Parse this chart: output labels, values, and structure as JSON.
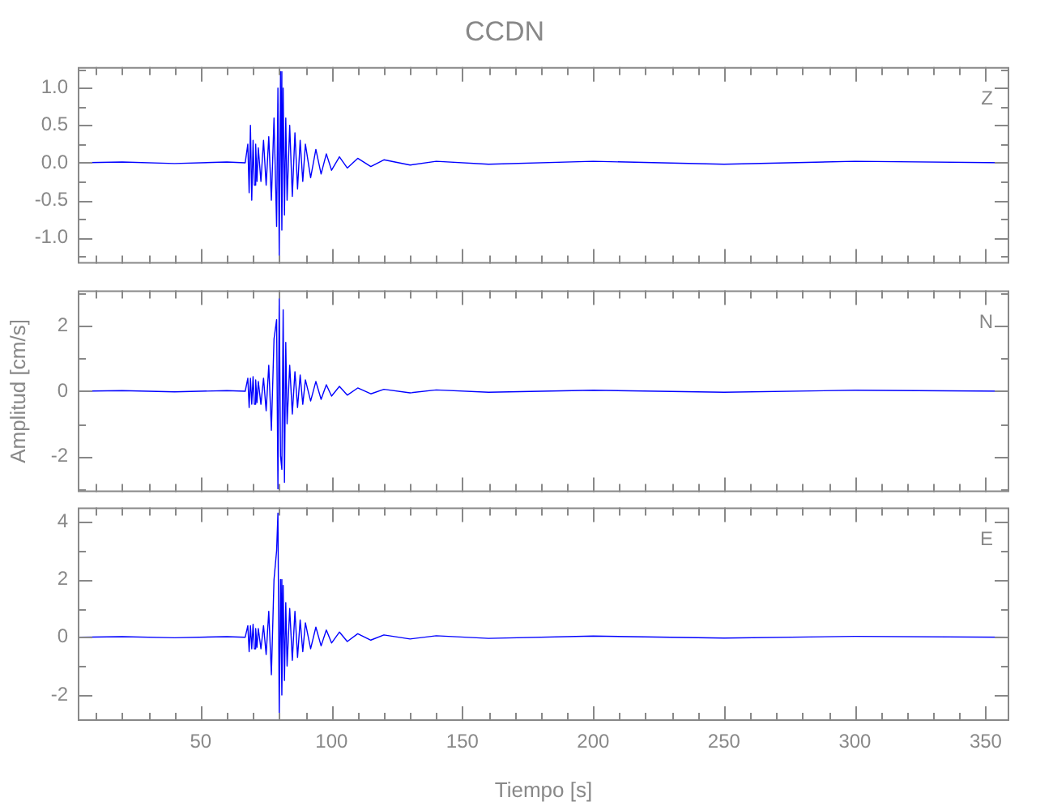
{
  "chart_data": [
    {
      "type": "line",
      "title": "CCDN",
      "annotations": [
        "Z"
      ],
      "tick_labels": "y",
      "x": [
        3,
        20,
        40,
        60,
        67,
        68,
        68.5,
        69,
        69.5,
        70,
        70.5,
        71,
        71.5,
        72,
        73,
        74,
        75,
        76,
        77,
        78,
        79,
        79.5,
        80,
        80.5,
        81,
        81.5,
        82,
        82.5,
        83,
        84,
        85,
        86,
        87,
        88,
        89,
        90,
        92,
        94,
        96,
        98,
        100,
        103,
        106,
        110,
        115,
        120,
        130,
        140,
        160,
        200,
        250,
        300,
        359
      ],
      "series": [
        {
          "color": "#0000ff",
          "values": [
            0,
            0.01,
            -0.01,
            0.01,
            0,
            0.25,
            -0.4,
            0.5,
            -0.5,
            0.3,
            -0.3,
            0.25,
            -0.25,
            0.2,
            -0.25,
            0.3,
            -0.3,
            0.35,
            -0.5,
            0.6,
            -0.85,
            1.0,
            -1.25,
            1.22,
            -0.9,
            1.0,
            -0.7,
            0.6,
            -0.5,
            0.5,
            -0.45,
            0.4,
            -0.35,
            0.3,
            -0.25,
            0.25,
            -0.2,
            0.18,
            -0.15,
            0.12,
            -0.1,
            0.08,
            -0.07,
            0.06,
            -0.05,
            0.04,
            -0.03,
            0.02,
            -0.02,
            0.02,
            -0.02,
            0.02,
            0
          ]
        }
      ],
      "xlim": [
        3,
        359
      ],
      "xticks": [
        {
          "value": 10,
          "label": null
        },
        {
          "value": 20,
          "label": null
        },
        {
          "value": 30,
          "label": null
        },
        {
          "value": 40,
          "label": null
        },
        50,
        {
          "value": 60,
          "label": null
        },
        {
          "value": 70,
          "label": null
        },
        {
          "value": 80,
          "label": null
        },
        {
          "value": 90,
          "label": null
        },
        100,
        {
          "value": 110,
          "label": null
        },
        {
          "value": 120,
          "label": null
        },
        {
          "value": 130,
          "label": null
        },
        {
          "value": 140,
          "label": null
        },
        150,
        {
          "value": 160,
          "label": null
        },
        {
          "value": 170,
          "label": null
        },
        {
          "value": 180,
          "label": null
        },
        {
          "value": 190,
          "label": null
        },
        200,
        {
          "value": 210,
          "label": null
        },
        {
          "value": 220,
          "label": null
        },
        {
          "value": 230,
          "label": null
        },
        {
          "value": 240,
          "label": null
        },
        250,
        {
          "value": 260,
          "label": null
        },
        {
          "value": 270,
          "label": null
        },
        {
          "value": 280,
          "label": null
        },
        {
          "value": 290,
          "label": null
        },
        300,
        {
          "value": 310,
          "label": null
        },
        {
          "value": 320,
          "label": null
        },
        {
          "value": 330,
          "label": null
        },
        {
          "value": 340,
          "label": null
        },
        350
      ],
      "ylim": [
        -1.35,
        1.28
      ],
      "yticks": [
        {
          "value": -1.25,
          "label": null
        },
        {
          "value": -1,
          "label": "-1.0"
        },
        {
          "value": -0.75,
          "label": null
        },
        {
          "value": -0.5,
          "label": "-0.5"
        },
        {
          "value": -0.25,
          "label": null
        },
        {
          "value": 0,
          "label": "0.0"
        },
        {
          "value": 0.25,
          "label": null
        },
        {
          "value": 0.5,
          "label": "0.5"
        },
        {
          "value": 0.75,
          "label": null
        },
        {
          "value": 1,
          "label": "1.0"
        },
        {
          "value": 1.25,
          "label": null
        }
      ]
    },
    {
      "type": "line",
      "ylabel": "Amplitud [cm/s]",
      "annotations": [
        "N"
      ],
      "tick_labels": "y",
      "x": [
        3,
        20,
        40,
        60,
        67,
        68,
        68.5,
        69,
        69.5,
        70,
        70.5,
        71,
        71.5,
        72,
        73,
        74,
        75,
        76,
        77,
        78,
        79,
        79.5,
        80,
        80.5,
        81,
        81.5,
        82,
        82.5,
        83,
        84,
        85,
        86,
        87,
        88,
        89,
        90,
        92,
        94,
        96,
        98,
        100,
        103,
        106,
        110,
        115,
        120,
        130,
        140,
        160,
        200,
        250,
        300,
        359
      ],
      "series": [
        {
          "color": "#0000ff",
          "values": [
            0,
            0.02,
            -0.02,
            0.02,
            0,
            0.4,
            -0.5,
            0.4,
            -0.4,
            0.45,
            -0.4,
            0.35,
            -0.35,
            0.3,
            -0.4,
            0.4,
            -0.6,
            0.8,
            -1.2,
            1.6,
            2.2,
            -3.0,
            2.9,
            -2.0,
            -2.4,
            2.5,
            -2.8,
            1.5,
            -1.0,
            0.8,
            -0.7,
            0.6,
            -0.5,
            0.5,
            -0.4,
            0.35,
            -0.3,
            0.3,
            -0.25,
            0.2,
            -0.15,
            0.15,
            -0.12,
            0.1,
            -0.08,
            0.06,
            -0.05,
            0.04,
            -0.03,
            0.03,
            -0.03,
            0.03,
            0
          ]
        }
      ],
      "xlim": [
        3,
        359
      ],
      "xticks": [
        {
          "value": 10,
          "label": null
        },
        {
          "value": 20,
          "label": null
        },
        {
          "value": 30,
          "label": null
        },
        {
          "value": 40,
          "label": null
        },
        50,
        {
          "value": 60,
          "label": null
        },
        {
          "value": 70,
          "label": null
        },
        {
          "value": 80,
          "label": null
        },
        {
          "value": 90,
          "label": null
        },
        100,
        {
          "value": 110,
          "label": null
        },
        {
          "value": 120,
          "label": null
        },
        {
          "value": 130,
          "label": null
        },
        {
          "value": 140,
          "label": null
        },
        150,
        {
          "value": 160,
          "label": null
        },
        {
          "value": 170,
          "label": null
        },
        {
          "value": 180,
          "label": null
        },
        {
          "value": 190,
          "label": null
        },
        200,
        {
          "value": 210,
          "label": null
        },
        {
          "value": 220,
          "label": null
        },
        {
          "value": 230,
          "label": null
        },
        {
          "value": 240,
          "label": null
        },
        250,
        {
          "value": 260,
          "label": null
        },
        {
          "value": 270,
          "label": null
        },
        {
          "value": 280,
          "label": null
        },
        {
          "value": 290,
          "label": null
        },
        300,
        {
          "value": 310,
          "label": null
        },
        {
          "value": 320,
          "label": null
        },
        {
          "value": 330,
          "label": null
        },
        {
          "value": 340,
          "label": null
        },
        350
      ],
      "ylim": [
        -3.1,
        3.1
      ],
      "yticks": [
        {
          "value": -3,
          "label": null
        },
        -2,
        {
          "value": -1,
          "label": null
        },
        0,
        {
          "value": 1,
          "label": null
        },
        2,
        {
          "value": 3,
          "label": null
        }
      ]
    },
    {
      "type": "line",
      "xlabel": "Tiempo [s]",
      "annotations": [
        "E"
      ],
      "x": [
        3,
        20,
        40,
        60,
        67,
        68,
        68.5,
        69,
        69.5,
        70,
        70.5,
        71,
        71.5,
        72,
        73,
        74,
        75,
        76,
        77,
        78,
        79,
        79.5,
        80,
        80.5,
        81,
        81.5,
        82,
        82.5,
        83,
        84,
        85,
        86,
        87,
        88,
        89,
        90,
        92,
        94,
        96,
        98,
        100,
        103,
        106,
        110,
        115,
        120,
        130,
        140,
        160,
        200,
        250,
        300,
        359
      ],
      "series": [
        {
          "color": "#0000ff",
          "values": [
            0,
            0.02,
            -0.02,
            0.02,
            0,
            0.4,
            -0.5,
            0.4,
            -0.4,
            0.45,
            -0.4,
            0.3,
            -0.35,
            0.3,
            -0.4,
            0.4,
            -0.6,
            0.9,
            -1.3,
            2.0,
            3.0,
            4.3,
            -2.7,
            2.0,
            -2.0,
            1.8,
            -1.5,
            1.2,
            -1.0,
            1.0,
            -0.8,
            0.9,
            -0.7,
            0.6,
            -0.5,
            0.5,
            -0.4,
            0.35,
            -0.3,
            0.25,
            -0.2,
            0.18,
            -0.15,
            0.12,
            -0.1,
            0.08,
            -0.06,
            0.05,
            -0.04,
            0.04,
            -0.03,
            0.03,
            0
          ]
        }
      ],
      "xlim": [
        3,
        359
      ],
      "xticks": [
        {
          "value": 10,
          "label": null
        },
        {
          "value": 20,
          "label": null
        },
        {
          "value": 30,
          "label": null
        },
        {
          "value": 40,
          "label": null
        },
        50,
        {
          "value": 60,
          "label": null
        },
        {
          "value": 70,
          "label": null
        },
        {
          "value": 80,
          "label": null
        },
        {
          "value": 90,
          "label": null
        },
        100,
        {
          "value": 110,
          "label": null
        },
        {
          "value": 120,
          "label": null
        },
        {
          "value": 130,
          "label": null
        },
        {
          "value": 140,
          "label": null
        },
        150,
        {
          "value": 160,
          "label": null
        },
        {
          "value": 170,
          "label": null
        },
        {
          "value": 180,
          "label": null
        },
        {
          "value": 190,
          "label": null
        },
        200,
        {
          "value": 210,
          "label": null
        },
        {
          "value": 220,
          "label": null
        },
        {
          "value": 230,
          "label": null
        },
        {
          "value": 240,
          "label": null
        },
        250,
        {
          "value": 260,
          "label": null
        },
        {
          "value": 270,
          "label": null
        },
        {
          "value": 280,
          "label": null
        },
        {
          "value": 290,
          "label": null
        },
        300,
        {
          "value": 310,
          "label": null
        },
        {
          "value": 320,
          "label": null
        },
        {
          "value": 330,
          "label": null
        },
        {
          "value": 340,
          "label": null
        },
        350
      ],
      "ylim": [
        -2.9,
        4.5
      ],
      "yticks": [
        {
          "value": -2,
          "label": "-2"
        },
        {
          "value": -1,
          "label": null
        },
        0,
        {
          "value": 1,
          "label": null
        },
        2,
        {
          "value": 3,
          "label": null
        },
        4
      ]
    }
  ]
}
